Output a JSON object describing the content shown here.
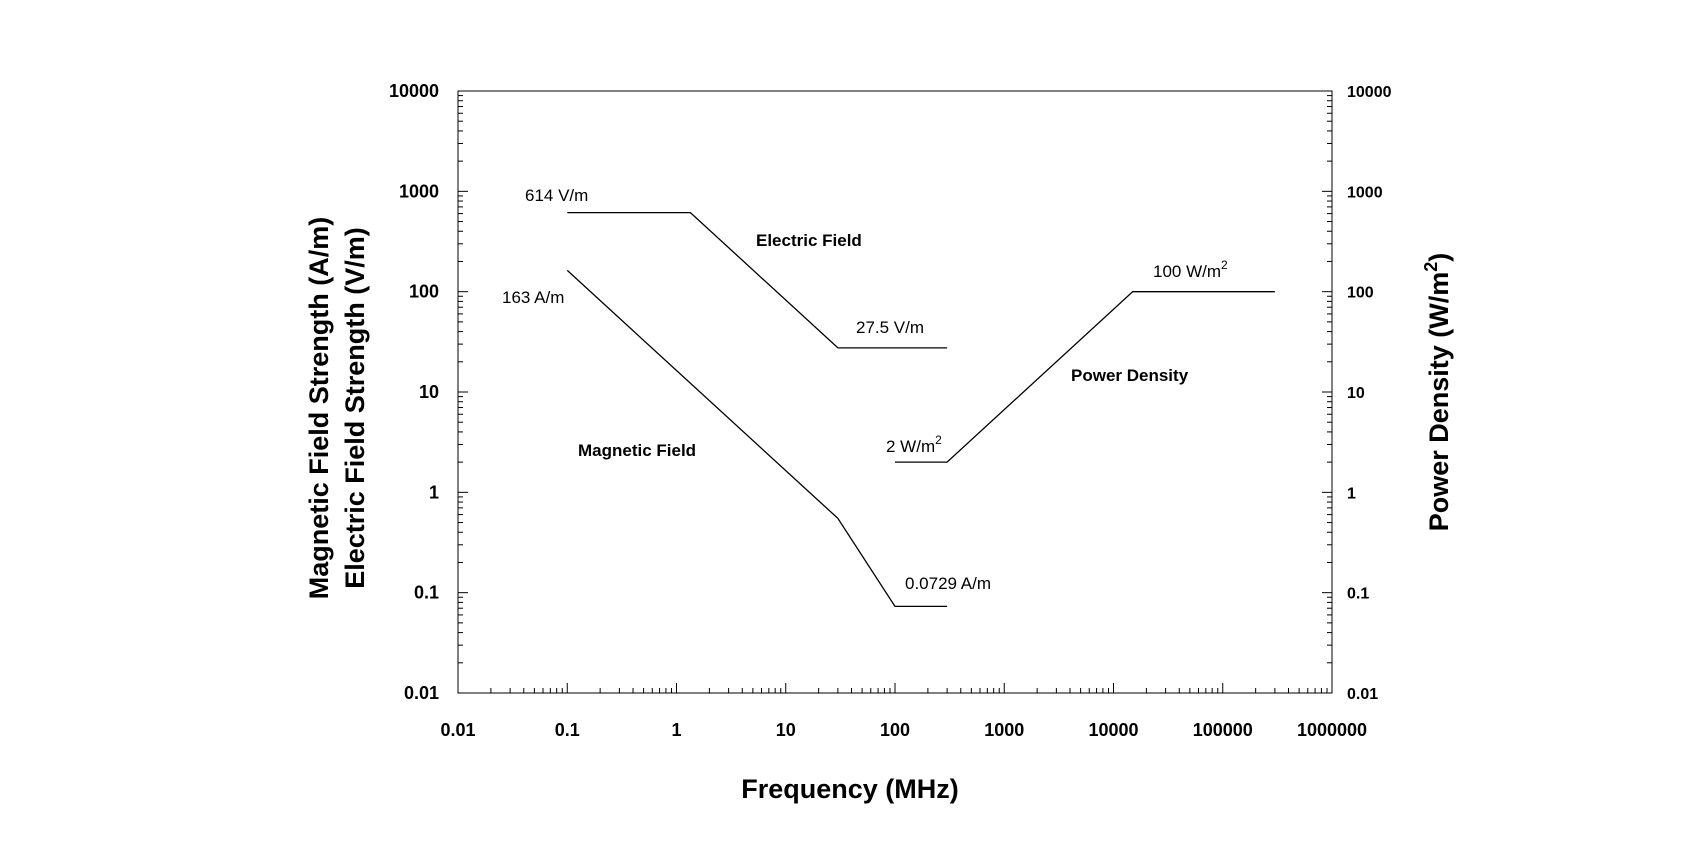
{
  "chart_data": {
    "type": "line",
    "title": "",
    "xlabel": "Frequency (MHz)",
    "ylabel_lines": [
      "Magnetic Field Strength (A/m)",
      "Electric Field Strength (V/m)"
    ],
    "y2label": "Power Density (W/m",
    "y2label_sup": "2",
    "y2label_close": ")",
    "x_scale": "log",
    "y_scale": "log",
    "y2_scale": "log",
    "xlim": [
      0.01,
      1000000
    ],
    "ylim": [
      0.01,
      10000
    ],
    "y2lim": [
      0.01,
      10000
    ],
    "grid": false,
    "x_ticks": [
      0.01,
      0.1,
      1,
      10,
      100,
      1000,
      10000,
      100000,
      1000000
    ],
    "x_tick_labels": [
      "0.01",
      "0.1",
      "1",
      "10",
      "100",
      "1000",
      "10000",
      "100000",
      "1000000"
    ],
    "y_ticks": [
      0.01,
      0.1,
      1,
      10,
      100,
      1000,
      10000
    ],
    "y_tick_labels": [
      "0.01",
      "0.1",
      "1",
      "10",
      "100",
      "1000",
      "10000"
    ],
    "y2_tick_labels": [
      "0.01",
      "0.1",
      "1",
      "10",
      "100",
      "1000",
      "10000"
    ],
    "series": [
      {
        "name": "Electric Field",
        "x": [
          0.1,
          1.34,
          30,
          300
        ],
        "y": [
          614,
          614,
          27.5,
          27.5
        ]
      },
      {
        "name": "Magnetic Field",
        "x": [
          0.1,
          30,
          100,
          300
        ],
        "y": [
          163,
          0.55,
          0.0729,
          0.0729
        ]
      },
      {
        "name": "Power Density",
        "x": [
          100,
          300,
          15000,
          300000
        ],
        "y": [
          2,
          2,
          100,
          100
        ]
      }
    ],
    "series_label_text": [
      "Electric Field",
      "Magnetic Field",
      "Power Density"
    ],
    "annotations": [
      {
        "text": "614 V/m",
        "sup": ""
      },
      {
        "text": "163 A/m",
        "sup": ""
      },
      {
        "text": "27.5 V/m",
        "sup": ""
      },
      {
        "text": "0.0729 A/m",
        "sup": ""
      },
      {
        "text": "2 W/m",
        "sup": "2"
      },
      {
        "text": "100 W/m",
        "sup": "2"
      }
    ]
  }
}
